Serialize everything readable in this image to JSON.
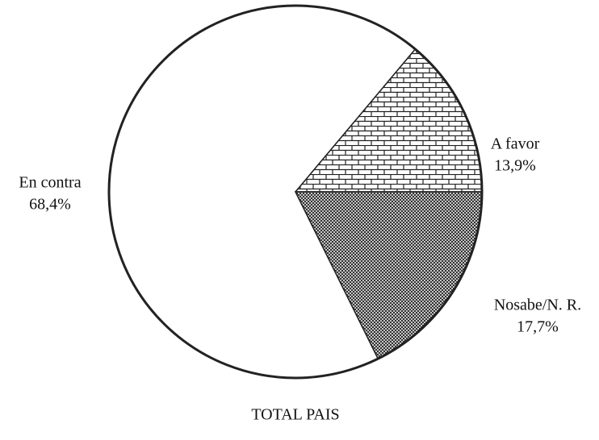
{
  "chart_data": {
    "type": "pie",
    "title": "TOTAL PAIS",
    "categories": [
      "A favor",
      "En contra",
      "Nosabe/N. R."
    ],
    "values": [
      13.9,
      68.4,
      17.7
    ],
    "value_labels": [
      "13,9%",
      "68,4%",
      "17,7%"
    ]
  }
}
